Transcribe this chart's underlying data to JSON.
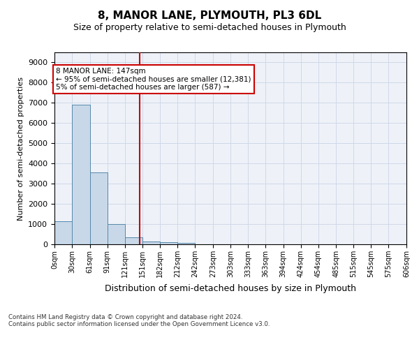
{
  "title": "8, MANOR LANE, PLYMOUTH, PL3 6DL",
  "subtitle": "Size of property relative to semi-detached houses in Plymouth",
  "xlabel": "Distribution of semi-detached houses by size in Plymouth",
  "ylabel": "Number of semi-detached properties",
  "bar_color": "#c8d8e8",
  "bar_edge_color": "#5588aa",
  "vline_color": "#cc0000",
  "vline_x": 147,
  "annotation_text": "8 MANOR LANE: 147sqm\n← 95% of semi-detached houses are smaller (12,381)\n5% of semi-detached houses are larger (587) →",
  "bin_edges": [
    0,
    30,
    61,
    91,
    121,
    151,
    182,
    212,
    242,
    273,
    303,
    333,
    363,
    394,
    424,
    454,
    485,
    515,
    545,
    575,
    606
  ],
  "bar_heights": [
    1130,
    6900,
    3560,
    1010,
    330,
    140,
    100,
    70,
    0,
    0,
    0,
    0,
    0,
    0,
    0,
    0,
    0,
    0,
    0,
    0
  ],
  "ylim": [
    0,
    9500
  ],
  "yticks": [
    0,
    1000,
    2000,
    3000,
    4000,
    5000,
    6000,
    7000,
    8000,
    9000
  ],
  "background_color": "#eef2f8",
  "grid_color": "#d0d8e8",
  "footer_text": "Contains HM Land Registry data © Crown copyright and database right 2024.\nContains public sector information licensed under the Open Government Licence v3.0.",
  "annotation_box_color": "#ffffff",
  "annotation_box_edge": "#cc0000"
}
